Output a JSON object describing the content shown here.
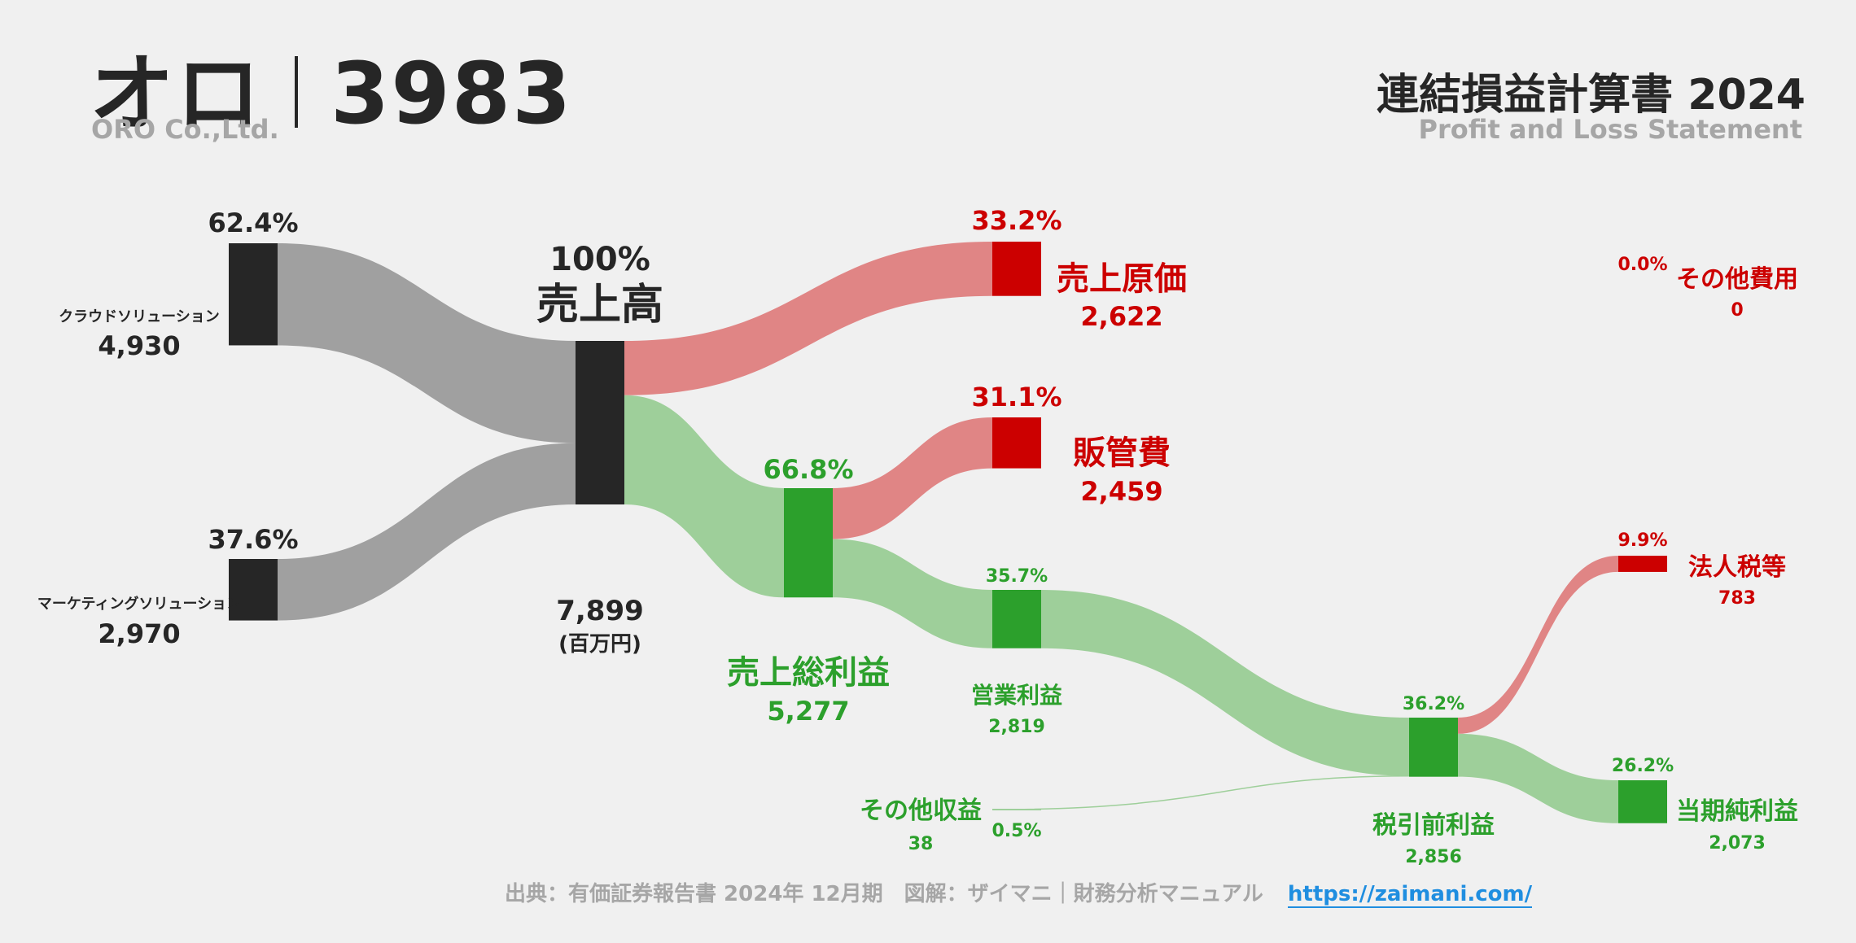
{
  "header": {
    "company_name": "オロ",
    "ticker": "3983",
    "company_en": "ORO Co.,Ltd.",
    "statement_title": "連結損益計算書 2024",
    "statement_en": "Profit and Loss Statement"
  },
  "footer": {
    "source": "出典：有価証券報告書 2024年 12月期　図解：ザイマニ｜財務分析マニュアル",
    "url_text": "https://zaimani.com/"
  },
  "colors": {
    "dark": "#262626",
    "gray_flow": "#a0a0a0",
    "red": "#cc0000",
    "red_flow": "#e08585",
    "green": "#2ca02c",
    "green_flow": "#9ecf9a",
    "muted": "#a6a6a6",
    "link": "#1f8ee0"
  },
  "chart_data": {
    "type": "sankey",
    "unit": "(百万円)",
    "nodes": [
      {
        "id": "cloud",
        "label": "クラウドソリューション",
        "value": "4,930",
        "pct": "62.4%",
        "kind": "segment"
      },
      {
        "id": "marketing",
        "label": "マーケティングソリューション",
        "value": "2,970",
        "pct": "37.6%",
        "kind": "segment"
      },
      {
        "id": "revenue",
        "label": "売上高",
        "value": "7,899",
        "pct": "100%",
        "kind": "total"
      },
      {
        "id": "cogs",
        "label": "売上原価",
        "value": "2,622",
        "pct": "33.2%",
        "kind": "cost"
      },
      {
        "id": "gross",
        "label": "売上総利益",
        "value": "5,277",
        "pct": "66.8%",
        "kind": "profit"
      },
      {
        "id": "sga",
        "label": "販管費",
        "value": "2,459",
        "pct": "31.1%",
        "kind": "cost"
      },
      {
        "id": "operating",
        "label": "営業利益",
        "value": "2,819",
        "pct": "35.7%",
        "kind": "profit"
      },
      {
        "id": "other_income",
        "label": "その他収益",
        "value": "38",
        "pct": "0.5%",
        "kind": "profit"
      },
      {
        "id": "other_expense",
        "label": "その他費用",
        "value": "0",
        "pct": "0.0%",
        "kind": "cost"
      },
      {
        "id": "pretax",
        "label": "税引前利益",
        "value": "2,856",
        "pct": "36.2%",
        "kind": "profit"
      },
      {
        "id": "tax",
        "label": "法人税等",
        "value": "783",
        "pct": "9.9%",
        "kind": "cost"
      },
      {
        "id": "net",
        "label": "当期純利益",
        "value": "2,073",
        "pct": "26.2%",
        "kind": "profit"
      }
    ],
    "links": [
      {
        "source": "cloud",
        "target": "revenue",
        "value": 4930
      },
      {
        "source": "marketing",
        "target": "revenue",
        "value": 2970
      },
      {
        "source": "revenue",
        "target": "cogs",
        "value": 2622
      },
      {
        "source": "revenue",
        "target": "gross",
        "value": 5277
      },
      {
        "source": "gross",
        "target": "sga",
        "value": 2459
      },
      {
        "source": "gross",
        "target": "operating",
        "value": 2819
      },
      {
        "source": "operating",
        "target": "pretax",
        "value": 2819
      },
      {
        "source": "other_income",
        "target": "pretax",
        "value": 38
      },
      {
        "source": "pretax",
        "target": "tax",
        "value": 783
      },
      {
        "source": "pretax",
        "target": "net",
        "value": 2073
      }
    ]
  }
}
